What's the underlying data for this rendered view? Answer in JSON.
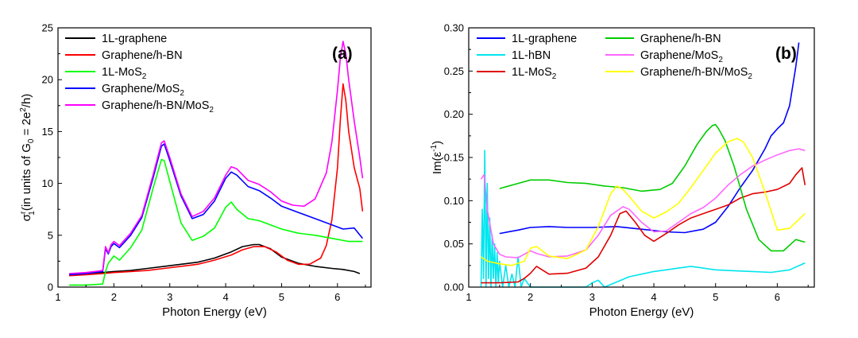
{
  "chart_data": [
    {
      "type": "line",
      "panel_label": "(a)",
      "xlabel": "Photon Energy (eV)",
      "ylabel": "σ1r(in units of G0 = 2e2/h)",
      "ylabel_parts": {
        "sigma": "σ",
        "sup": "r",
        "sub": "1",
        "mid": "(in units of G",
        "sub0": "0",
        "eq": " = 2e",
        "sup2": "2",
        "end": "/h)"
      },
      "xlim": [
        1,
        6.6
      ],
      "ylim": [
        0,
        25
      ],
      "xticks": [
        1,
        2,
        3,
        4,
        5,
        6
      ],
      "yticks": [
        0,
        5,
        10,
        15,
        20,
        25
      ],
      "grid": false,
      "legend_position": "top-left",
      "series": [
        {
          "name": "1L-graphene",
          "color": "#000000",
          "x": [
            1.2,
            1.5,
            1.8,
            2.0,
            2.3,
            2.6,
            2.9,
            3.2,
            3.5,
            3.8,
            4.1,
            4.3,
            4.5,
            4.6,
            4.8,
            5.0,
            5.3,
            5.6,
            5.9,
            6.1,
            6.3,
            6.4
          ],
          "y": [
            1.2,
            1.3,
            1.4,
            1.5,
            1.6,
            1.8,
            2.0,
            2.2,
            2.4,
            2.8,
            3.4,
            3.9,
            4.1,
            4.1,
            3.7,
            2.9,
            2.3,
            2.0,
            1.8,
            1.7,
            1.5,
            1.3
          ]
        },
        {
          "name": "Graphene/h-BN",
          "color": "#ff0000",
          "x": [
            1.2,
            1.5,
            1.8,
            2.0,
            2.3,
            2.6,
            2.9,
            3.2,
            3.5,
            3.8,
            4.1,
            4.3,
            4.5,
            4.7,
            4.9,
            5.1,
            5.3,
            5.5,
            5.7,
            5.8,
            5.9,
            6.0,
            6.05,
            6.1,
            6.15,
            6.2,
            6.3,
            6.4,
            6.45
          ],
          "y": [
            1.1,
            1.2,
            1.3,
            1.4,
            1.5,
            1.6,
            1.8,
            2.0,
            2.2,
            2.6,
            3.1,
            3.6,
            3.9,
            3.9,
            3.4,
            2.6,
            2.2,
            2.2,
            2.8,
            4.0,
            6.5,
            11.5,
            16.0,
            19.6,
            18.0,
            15.0,
            11.5,
            9.5,
            7.3
          ]
        },
        {
          "name": "1L-MoS2",
          "color": "#00ff00",
          "x": [
            1.2,
            1.5,
            1.8,
            1.85,
            1.9,
            2.0,
            2.1,
            2.3,
            2.5,
            2.7,
            2.85,
            2.9,
            3.0,
            3.2,
            3.4,
            3.6,
            3.8,
            4.0,
            4.1,
            4.2,
            4.4,
            4.6,
            4.8,
            5.0,
            5.3,
            5.6,
            5.9,
            6.2,
            6.45
          ],
          "y": [
            0.2,
            0.2,
            0.3,
            1.5,
            2.3,
            3.0,
            2.6,
            3.8,
            5.5,
            9.5,
            12.3,
            12.2,
            10.2,
            6.2,
            4.5,
            4.9,
            5.7,
            7.7,
            8.2,
            7.5,
            6.6,
            6.4,
            6.0,
            5.6,
            5.2,
            5.0,
            4.7,
            4.4,
            4.4
          ]
        },
        {
          "name": "Graphene/MoS2",
          "color": "#0000ff",
          "x": [
            1.2,
            1.5,
            1.8,
            1.85,
            1.9,
            1.95,
            2.0,
            2.1,
            2.3,
            2.5,
            2.7,
            2.85,
            2.9,
            3.0,
            3.2,
            3.4,
            3.6,
            3.8,
            4.0,
            4.1,
            4.2,
            4.4,
            4.6,
            4.8,
            5.0,
            5.3,
            5.6,
            5.9,
            6.1,
            6.3,
            6.45
          ],
          "y": [
            1.2,
            1.3,
            1.5,
            3.7,
            3.2,
            3.9,
            4.2,
            3.8,
            5.0,
            6.7,
            10.5,
            13.6,
            13.8,
            12.2,
            8.8,
            6.6,
            7.0,
            8.3,
            10.5,
            11.1,
            10.8,
            9.7,
            9.3,
            8.6,
            7.8,
            7.2,
            6.6,
            6.0,
            5.6,
            5.7,
            4.7
          ]
        },
        {
          "name": "Graphene/h-BN/MoS2",
          "color": "#ff00ff",
          "x": [
            1.2,
            1.5,
            1.8,
            1.85,
            1.9,
            1.95,
            2.0,
            2.1,
            2.3,
            2.5,
            2.7,
            2.85,
            2.9,
            3.0,
            3.2,
            3.4,
            3.6,
            3.8,
            4.0,
            4.1,
            4.2,
            4.4,
            4.6,
            4.8,
            5.0,
            5.2,
            5.4,
            5.6,
            5.8,
            5.9,
            6.0,
            6.05,
            6.1,
            6.15,
            6.2,
            6.3,
            6.4,
            6.45
          ],
          "y": [
            1.3,
            1.4,
            1.6,
            3.9,
            3.3,
            4.1,
            4.4,
            4.0,
            5.2,
            6.9,
            10.8,
            13.9,
            14.1,
            12.5,
            9.0,
            6.8,
            7.3,
            8.6,
            10.8,
            11.6,
            11.4,
            10.3,
            9.9,
            9.2,
            8.3,
            7.9,
            7.8,
            8.5,
            11.0,
            14.0,
            19.0,
            22.0,
            23.7,
            22.5,
            20.0,
            16.0,
            12.5,
            10.5
          ]
        }
      ]
    },
    {
      "type": "line",
      "panel_label": "(b)",
      "xlabel": "Photon Energy (eV)",
      "ylabel": "Im(ε-1)",
      "ylabel_parts": {
        "pre": "Im(ε",
        "sup": "-1",
        "post": ")"
      },
      "xlim": [
        1,
        6.6
      ],
      "ylim": [
        0,
        0.3
      ],
      "xticks": [
        1,
        2,
        3,
        4,
        5,
        6
      ],
      "yticks": [
        0.0,
        0.05,
        0.1,
        0.15,
        0.2,
        0.25,
        0.3
      ],
      "ytick_labels": [
        "0.00",
        "0.05",
        "0.10",
        "0.15",
        "0.20",
        "0.25",
        "0.30"
      ],
      "grid": false,
      "legend_position": "top",
      "series": [
        {
          "name": "1L-graphene",
          "color": "#0000ff",
          "x": [
            1.5,
            1.8,
            2.0,
            2.3,
            2.6,
            3.0,
            3.4,
            3.8,
            4.2,
            4.5,
            4.8,
            5.0,
            5.2,
            5.4,
            5.6,
            5.8,
            5.9,
            6.0,
            6.1,
            6.2,
            6.3,
            6.35
          ],
          "y": [
            0.062,
            0.066,
            0.069,
            0.07,
            0.069,
            0.069,
            0.07,
            0.067,
            0.064,
            0.063,
            0.067,
            0.075,
            0.093,
            0.115,
            0.135,
            0.16,
            0.175,
            0.183,
            0.19,
            0.21,
            0.255,
            0.283
          ]
        },
        {
          "name": "1L-hBN",
          "color": "#00e5ee",
          "x": [
            1.2,
            1.22,
            1.24,
            1.26,
            1.28,
            1.3,
            1.32,
            1.34,
            1.36,
            1.38,
            1.4,
            1.42,
            1.44,
            1.46,
            1.48,
            1.5,
            1.55,
            1.6,
            1.65,
            1.7,
            1.75,
            1.8,
            1.85,
            1.9,
            2.0,
            2.2,
            2.5,
            2.7,
            2.9,
            3.0,
            3.1,
            3.2,
            3.4,
            3.6,
            3.8,
            4.0,
            4.2,
            4.4,
            4.6,
            4.8,
            5.0,
            5.3,
            5.6,
            5.9,
            6.2,
            6.45
          ],
          "y": [
            0.0,
            0.09,
            0.01,
            0.158,
            0.0,
            0.12,
            0.01,
            0.08,
            0.0,
            0.06,
            0.01,
            0.05,
            0.0,
            0.04,
            0.005,
            0.03,
            0.0,
            0.025,
            0.0,
            0.015,
            0.0,
            0.035,
            0.0,
            0.01,
            0.0,
            0.0,
            0.0,
            0.0,
            0.0,
            0.005,
            0.008,
            0.0,
            0.006,
            0.012,
            0.015,
            0.018,
            0.02,
            0.022,
            0.024,
            0.022,
            0.02,
            0.019,
            0.018,
            0.017,
            0.02,
            0.028
          ]
        },
        {
          "name": "1L-MoS2",
          "color": "#e00000",
          "x": [
            1.2,
            1.5,
            1.8,
            1.9,
            2.0,
            2.1,
            2.3,
            2.6,
            2.9,
            3.1,
            3.3,
            3.45,
            3.55,
            3.7,
            3.85,
            4.0,
            4.2,
            4.4,
            4.6,
            4.8,
            5.0,
            5.2,
            5.4,
            5.6,
            5.8,
            6.0,
            6.2,
            6.3,
            6.4,
            6.45
          ],
          "y": [
            0.005,
            0.005,
            0.006,
            0.01,
            0.016,
            0.024,
            0.015,
            0.016,
            0.022,
            0.035,
            0.06,
            0.085,
            0.088,
            0.075,
            0.06,
            0.053,
            0.062,
            0.072,
            0.08,
            0.085,
            0.09,
            0.095,
            0.103,
            0.108,
            0.11,
            0.113,
            0.12,
            0.13,
            0.138,
            0.118
          ]
        },
        {
          "name": "Graphene/h-BN",
          "color": "#00cc00",
          "x": [
            1.5,
            1.8,
            2.0,
            2.3,
            2.6,
            2.9,
            3.2,
            3.5,
            3.8,
            4.1,
            4.3,
            4.5,
            4.7,
            4.85,
            4.95,
            5.0,
            5.05,
            5.15,
            5.3,
            5.5,
            5.7,
            5.9,
            6.1,
            6.3,
            6.45
          ],
          "y": [
            0.114,
            0.12,
            0.124,
            0.124,
            0.121,
            0.12,
            0.117,
            0.115,
            0.111,
            0.113,
            0.12,
            0.14,
            0.165,
            0.18,
            0.187,
            0.188,
            0.183,
            0.17,
            0.14,
            0.09,
            0.055,
            0.042,
            0.042,
            0.055,
            0.052
          ]
        },
        {
          "name": "Graphene/MoS2",
          "color": "#ff66ff",
          "x": [
            1.2,
            1.25,
            1.3,
            1.35,
            1.4,
            1.5,
            1.6,
            1.8,
            1.9,
            2.0,
            2.1,
            2.3,
            2.6,
            2.9,
            3.1,
            3.3,
            3.5,
            3.6,
            3.8,
            4.0,
            4.2,
            4.4,
            4.6,
            4.8,
            5.0,
            5.2,
            5.4,
            5.6,
            5.8,
            6.0,
            6.2,
            6.35,
            6.45
          ],
          "y": [
            0.125,
            0.13,
            0.09,
            0.07,
            0.05,
            0.038,
            0.035,
            0.034,
            0.038,
            0.042,
            0.039,
            0.035,
            0.036,
            0.043,
            0.06,
            0.083,
            0.093,
            0.09,
            0.075,
            0.064,
            0.065,
            0.075,
            0.085,
            0.092,
            0.103,
            0.118,
            0.13,
            0.14,
            0.147,
            0.153,
            0.158,
            0.16,
            0.158
          ]
        },
        {
          "name": "Graphene/h-BN/MoS2",
          "color": "#ffff00",
          "x": [
            1.2,
            1.3,
            1.5,
            1.7,
            1.9,
            2.0,
            2.1,
            2.3,
            2.6,
            2.9,
            3.1,
            3.3,
            3.4,
            3.5,
            3.6,
            3.8,
            4.0,
            4.2,
            4.4,
            4.6,
            4.8,
            5.0,
            5.2,
            5.35,
            5.45,
            5.6,
            5.8,
            6.0,
            6.2,
            6.45
          ],
          "y": [
            0.035,
            0.03,
            0.027,
            0.025,
            0.03,
            0.045,
            0.047,
            0.036,
            0.033,
            0.043,
            0.07,
            0.108,
            0.117,
            0.113,
            0.105,
            0.088,
            0.08,
            0.087,
            0.097,
            0.115,
            0.135,
            0.155,
            0.168,
            0.172,
            0.168,
            0.15,
            0.11,
            0.066,
            0.068,
            0.085
          ]
        }
      ]
    }
  ]
}
